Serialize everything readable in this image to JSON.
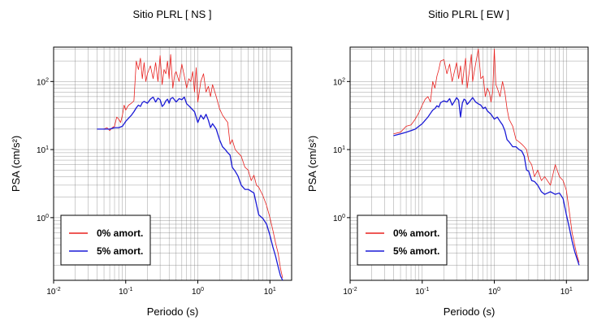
{
  "chart_data": [
    {
      "type": "line",
      "title": "Sitio PLRL [ NS ]",
      "xlabel": "Periodo (s)",
      "ylabel": "PSA (cm/s²)",
      "xscale": "log",
      "yscale": "log",
      "xlim": [
        0.01,
        20
      ],
      "ylim": [
        0.12,
        320
      ],
      "grid": true,
      "legend_position": "bottom-left",
      "xticks": [
        {
          "base": "10",
          "exp": "-2",
          "value": 0.01
        },
        {
          "base": "10",
          "exp": "-1",
          "value": 0.1
        },
        {
          "base": "10",
          "exp": "0",
          "value": 1
        },
        {
          "base": "10",
          "exp": "1",
          "value": 10
        }
      ],
      "yticks": [
        {
          "base": "10",
          "exp": "0",
          "value": 1
        },
        {
          "base": "10",
          "exp": "1",
          "value": 10
        },
        {
          "base": "10",
          "exp": "2",
          "value": 100
        }
      ],
      "series": [
        {
          "name": "0% amort.",
          "color": "#e8201e",
          "x": [
            0.04,
            0.05,
            0.055,
            0.06,
            0.065,
            0.07,
            0.075,
            0.08,
            0.085,
            0.09,
            0.095,
            0.1,
            0.105,
            0.11,
            0.12,
            0.13,
            0.14,
            0.15,
            0.16,
            0.17,
            0.18,
            0.19,
            0.2,
            0.22,
            0.24,
            0.26,
            0.28,
            0.3,
            0.32,
            0.34,
            0.36,
            0.38,
            0.4,
            0.42,
            0.45,
            0.48,
            0.5,
            0.55,
            0.6,
            0.65,
            0.7,
            0.75,
            0.8,
            0.85,
            0.9,
            0.95,
            1.0,
            1.1,
            1.2,
            1.3,
            1.4,
            1.5,
            1.6,
            1.8,
            2.0,
            2.2,
            2.4,
            2.6,
            2.8,
            3.0,
            3.3,
            3.6,
            4.0,
            4.5,
            5.0,
            5.5,
            6.0,
            6.5,
            7.0,
            8.0,
            9.0,
            10.0,
            11.0,
            12.0,
            13.0,
            14.0,
            15.0
          ],
          "y": [
            20,
            20,
            21,
            19,
            21,
            22,
            30,
            28,
            25,
            32,
            45,
            38,
            42,
            45,
            48,
            52,
            200,
            150,
            220,
            110,
            190,
            100,
            130,
            170,
            110,
            190,
            100,
            240,
            90,
            150,
            130,
            200,
            110,
            250,
            80,
            130,
            140,
            100,
            180,
            120,
            80,
            110,
            100,
            140,
            70,
            160,
            50,
            100,
            130,
            70,
            85,
            60,
            90,
            60,
            40,
            32,
            28,
            25,
            12,
            14,
            10,
            9,
            8,
            5.5,
            5,
            3.5,
            4.2,
            3,
            2.8,
            2.1,
            1.5,
            1.0,
            0.65,
            0.42,
            0.3,
            0.18,
            0.13
          ]
        },
        {
          "name": "5% amort.",
          "color": "#1a1ad6",
          "x": [
            0.04,
            0.05,
            0.06,
            0.07,
            0.08,
            0.09,
            0.1,
            0.11,
            0.12,
            0.13,
            0.14,
            0.15,
            0.16,
            0.17,
            0.18,
            0.2,
            0.22,
            0.24,
            0.26,
            0.28,
            0.3,
            0.32,
            0.34,
            0.36,
            0.38,
            0.4,
            0.42,
            0.45,
            0.5,
            0.55,
            0.6,
            0.65,
            0.7,
            0.75,
            0.8,
            0.9,
            1.0,
            1.1,
            1.2,
            1.3,
            1.4,
            1.5,
            1.6,
            1.8,
            2.0,
            2.2,
            2.4,
            2.6,
            2.8,
            3.0,
            3.3,
            3.6,
            4.0,
            4.5,
            5.0,
            6.0,
            7.0,
            8.0,
            9.0,
            10.0,
            11.0,
            12.0,
            13.0,
            14.0,
            15.0
          ],
          "y": [
            20,
            20,
            20,
            21,
            21,
            22,
            26,
            29,
            32,
            36,
            41,
            45,
            43,
            49,
            51,
            48,
            55,
            59,
            50,
            57,
            54,
            43,
            46,
            52,
            55,
            48,
            56,
            58,
            50,
            56,
            54,
            59,
            47,
            44,
            41,
            36,
            25,
            32,
            28,
            33,
            27,
            21,
            24,
            20,
            14,
            11,
            10,
            9,
            8.3,
            5.5,
            4.8,
            4.1,
            3.0,
            2.6,
            2.6,
            2.3,
            1.1,
            0.97,
            0.8,
            0.55,
            0.37,
            0.27,
            0.19,
            0.14,
            0.12
          ]
        }
      ]
    },
    {
      "type": "line",
      "title": "Sitio PLRL [ EW ]",
      "xlabel": "Periodo (s)",
      "ylabel": "PSA (cm/s²)",
      "xscale": "log",
      "yscale": "log",
      "xlim": [
        0.01,
        20
      ],
      "ylim": [
        0.12,
        320
      ],
      "grid": true,
      "legend_position": "bottom-left",
      "xticks": [
        {
          "base": "10",
          "exp": "-2",
          "value": 0.01
        },
        {
          "base": "10",
          "exp": "-1",
          "value": 0.1
        },
        {
          "base": "10",
          "exp": "0",
          "value": 1
        },
        {
          "base": "10",
          "exp": "1",
          "value": 10
        }
      ],
      "yticks": [
        {
          "base": "10",
          "exp": "0",
          "value": 1
        },
        {
          "base": "10",
          "exp": "1",
          "value": 10
        },
        {
          "base": "10",
          "exp": "2",
          "value": 100
        }
      ],
      "series": [
        {
          "name": "0% amort.",
          "color": "#e8201e",
          "x": [
            0.04,
            0.05,
            0.06,
            0.07,
            0.08,
            0.09,
            0.1,
            0.11,
            0.12,
            0.13,
            0.14,
            0.15,
            0.16,
            0.17,
            0.18,
            0.2,
            0.22,
            0.24,
            0.26,
            0.28,
            0.3,
            0.32,
            0.34,
            0.36,
            0.38,
            0.4,
            0.42,
            0.45,
            0.48,
            0.5,
            0.55,
            0.6,
            0.65,
            0.7,
            0.75,
            0.8,
            0.85,
            0.9,
            0.95,
            1.0,
            1.05,
            1.1,
            1.2,
            1.3,
            1.4,
            1.5,
            1.6,
            1.8,
            2.0,
            2.2,
            2.4,
            2.6,
            2.8,
            3.0,
            3.3,
            3.6,
            4.0,
            4.5,
            5.0,
            6.0,
            7.0,
            8.0,
            9.0,
            10.0,
            11.0,
            12.0,
            13.0,
            14.0,
            15.0
          ],
          "y": [
            17,
            18,
            22,
            23,
            28,
            35,
            45,
            55,
            60,
            50,
            100,
            80,
            120,
            150,
            200,
            210,
            130,
            180,
            100,
            140,
            190,
            110,
            170,
            90,
            150,
            220,
            80,
            140,
            250,
            100,
            180,
            300,
            110,
            120,
            60,
            80,
            70,
            50,
            70,
            300,
            90,
            80,
            60,
            100,
            70,
            40,
            28,
            22,
            14,
            13,
            12,
            11,
            10,
            7,
            6,
            4,
            5,
            3.5,
            4,
            3,
            6,
            4,
            3.5,
            2.5,
            1.2,
            0.6,
            0.4,
            0.28,
            0.22
          ]
        },
        {
          "name": "5% amort.",
          "color": "#1a1ad6",
          "x": [
            0.04,
            0.05,
            0.06,
            0.07,
            0.08,
            0.09,
            0.1,
            0.11,
            0.12,
            0.13,
            0.14,
            0.15,
            0.16,
            0.17,
            0.18,
            0.2,
            0.22,
            0.24,
            0.26,
            0.28,
            0.3,
            0.32,
            0.34,
            0.36,
            0.38,
            0.4,
            0.42,
            0.45,
            0.5,
            0.55,
            0.6,
            0.65,
            0.7,
            0.75,
            0.8,
            0.9,
            1.0,
            1.1,
            1.2,
            1.3,
            1.4,
            1.5,
            1.6,
            1.8,
            2.0,
            2.2,
            2.4,
            2.6,
            2.8,
            3.0,
            3.3,
            3.6,
            4.0,
            4.5,
            5.0,
            6.0,
            7.0,
            8.0,
            9.0,
            10.0,
            11.0,
            12.0,
            13.0,
            14.0,
            15.0
          ],
          "y": [
            16,
            17,
            18,
            19,
            20,
            22,
            24,
            27,
            30,
            34,
            38,
            40,
            44,
            42,
            49,
            52,
            50,
            56,
            45,
            51,
            58,
            53,
            30,
            48,
            55,
            53,
            46,
            50,
            58,
            50,
            47,
            45,
            40,
            42,
            37,
            33,
            28,
            30,
            26,
            23,
            19,
            14,
            13,
            11,
            11,
            10,
            9.5,
            8,
            5,
            4.8,
            3.5,
            3.4,
            3.0,
            2.4,
            2.2,
            2.4,
            2.2,
            2.3,
            1.9,
            1.1,
            0.7,
            0.45,
            0.32,
            0.25,
            0.2
          ]
        }
      ]
    }
  ]
}
